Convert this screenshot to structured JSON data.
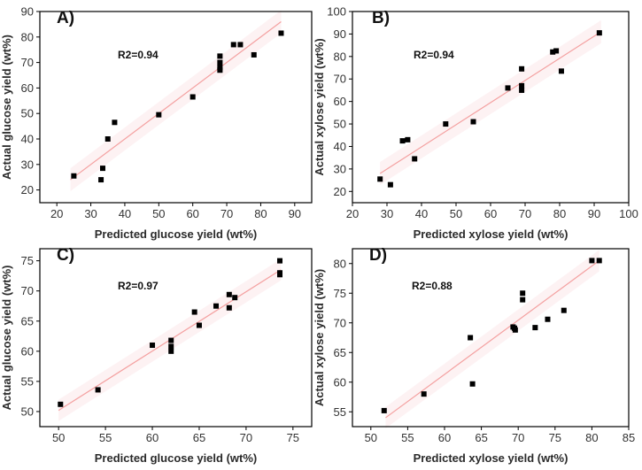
{
  "chart_data": [
    {
      "type": "scatter",
      "panel": "A)",
      "annotation": "R2=0.94",
      "xlabel": "Predicted glucose yield (wt%)",
      "ylabel": "Actual glucose yield (wt%)",
      "xlim": [
        15,
        95
      ],
      "ylim": [
        15,
        90
      ],
      "xticks": [
        20,
        30,
        40,
        50,
        60,
        70,
        80,
        90
      ],
      "yticks": [
        20,
        30,
        40,
        50,
        60,
        70,
        80,
        90
      ],
      "fit_line": [
        [
          24,
          24
        ],
        [
          86,
          86
        ]
      ],
      "points": [
        [
          25,
          25.5
        ],
        [
          33,
          24
        ],
        [
          33.5,
          28.5
        ],
        [
          35,
          40
        ],
        [
          37,
          46.5
        ],
        [
          50,
          49.5
        ],
        [
          60,
          56.5
        ],
        [
          68,
          67
        ],
        [
          68,
          68
        ],
        [
          68,
          70
        ],
        [
          68,
          72.5
        ],
        [
          72,
          77
        ],
        [
          74,
          77
        ],
        [
          78,
          73
        ],
        [
          86,
          81.5
        ]
      ],
      "color": "#000000",
      "line_color": "#f4a0a0"
    },
    {
      "type": "scatter",
      "panel": "B)",
      "annotation": "R2=0.94",
      "xlabel": "Predicted xylose yield (wt%)",
      "ylabel": "Actual xylose yield (wt%)",
      "xlim": [
        20,
        100
      ],
      "ylim": [
        15,
        100
      ],
      "xticks": [
        20,
        30,
        40,
        50,
        60,
        70,
        80,
        90,
        100
      ],
      "yticks": [
        20,
        30,
        40,
        50,
        60,
        70,
        80,
        90,
        100
      ],
      "fit_line": [
        [
          28,
          28
        ],
        [
          92,
          91
        ]
      ],
      "points": [
        [
          28,
          25.5
        ],
        [
          31,
          23
        ],
        [
          34.5,
          42.5
        ],
        [
          36,
          43
        ],
        [
          38,
          34.5
        ],
        [
          47,
          50
        ],
        [
          55,
          51
        ],
        [
          65,
          66
        ],
        [
          69,
          65
        ],
        [
          69,
          67
        ],
        [
          69,
          74.5
        ],
        [
          78,
          82
        ],
        [
          79,
          82.5
        ],
        [
          80.5,
          73.5
        ],
        [
          91.5,
          90.5
        ]
      ],
      "color": "#000000",
      "line_color": "#f4a0a0"
    },
    {
      "type": "scatter",
      "panel": "C)",
      "annotation": "R2=0.97",
      "xlabel": "Predicted glucose yield (wt%)",
      "ylabel": "Actual glucose yield (wt%)",
      "xlim": [
        48,
        77
      ],
      "ylim": [
        47.5,
        77
      ],
      "xticks": [
        50,
        55,
        60,
        65,
        70,
        75
      ],
      "yticks": [
        50,
        55,
        60,
        65,
        70,
        75
      ],
      "fit_line": [
        [
          50,
          50.2
        ],
        [
          73.7,
          73.5
        ]
      ],
      "points": [
        [
          50.2,
          51.2
        ],
        [
          54.2,
          53.6
        ],
        [
          60,
          61
        ],
        [
          62,
          60
        ],
        [
          62,
          60.8
        ],
        [
          62,
          61.8
        ],
        [
          64.5,
          66.5
        ],
        [
          65,
          64.3
        ],
        [
          66.8,
          67.5
        ],
        [
          68.2,
          69.4
        ],
        [
          68.2,
          67.2
        ],
        [
          68.8,
          68.9
        ],
        [
          73.6,
          75
        ],
        [
          73.6,
          73
        ],
        [
          73.6,
          72.7
        ]
      ],
      "color": "#000000",
      "line_color": "#f4a0a0"
    },
    {
      "type": "scatter",
      "panel": "D)",
      "annotation": "R2=0.88",
      "xlabel": "Predicted xylose yield (wt%)",
      "ylabel": "Actual xylose yield (wt%)",
      "xlim": [
        47.5,
        85
      ],
      "ylim": [
        52.5,
        82.5
      ],
      "xticks": [
        50,
        55,
        60,
        65,
        70,
        75,
        80,
        85
      ],
      "yticks": [
        55,
        60,
        65,
        70,
        75,
        80
      ],
      "fit_line": [
        [
          52,
          54
        ],
        [
          81,
          80.5
        ]
      ],
      "points": [
        [
          51.8,
          55.2
        ],
        [
          57.2,
          58
        ],
        [
          63.5,
          67.5
        ],
        [
          63.8,
          59.7
        ],
        [
          69.3,
          69.3
        ],
        [
          69.5,
          69.1
        ],
        [
          69.6,
          68.8
        ],
        [
          70.6,
          73.9
        ],
        [
          70.6,
          75
        ],
        [
          72.3,
          69.2
        ],
        [
          74,
          70.6
        ],
        [
          76.2,
          72.1
        ],
        [
          80,
          80.5
        ],
        [
          81,
          80.5
        ]
      ],
      "color": "#000000",
      "line_color": "#f4a0a0"
    }
  ]
}
